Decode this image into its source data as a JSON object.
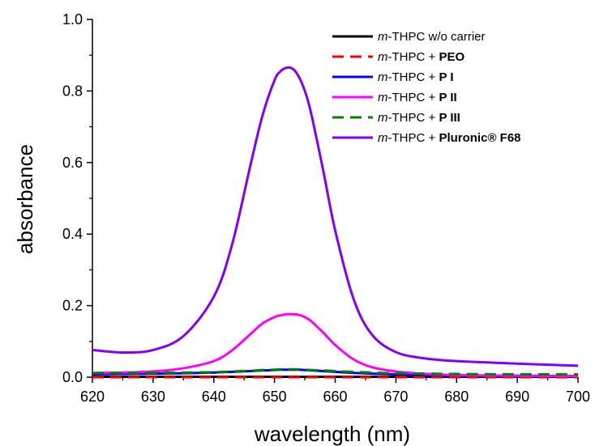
{
  "chart_data": {
    "type": "line",
    "xlabel": "wavelength (nm)",
    "ylabel": "absorbance",
    "xlim": [
      620,
      700
    ],
    "ylim": [
      0.0,
      1.0
    ],
    "x_ticks": [
      "620",
      "630",
      "640",
      "650",
      "660",
      "670",
      "680",
      "690",
      "700"
    ],
    "y_ticks": [
      "0.0",
      "0.2",
      "0.4",
      "0.6",
      "0.8",
      "1.0"
    ],
    "x": [
      620,
      625,
      630,
      635,
      640,
      643,
      646,
      648,
      650,
      651,
      652,
      653,
      654,
      655,
      656,
      658,
      660,
      663,
      666,
      670,
      675,
      680,
      690,
      700
    ],
    "series": [
      {
        "name": "m-THPC w/o carrier",
        "name_parts": [
          {
            "t": "m",
            "s": "ital"
          },
          {
            "t": "-THPC w/o carrier",
            "s": ""
          }
        ],
        "color": "#000000",
        "dash": false,
        "values": [
          0.001,
          0.001,
          0.001,
          0.001,
          0.001,
          0.001,
          0.001,
          0.001,
          0.001,
          0.001,
          0.001,
          0.001,
          0.001,
          0.001,
          0.001,
          0.001,
          0.001,
          0.001,
          0.001,
          0.001,
          0.001,
          0.001,
          0.001,
          0.001
        ]
      },
      {
        "name": "m-THPC + PEO",
        "name_parts": [
          {
            "t": "m",
            "s": "ital"
          },
          {
            "t": "-THPC + ",
            "s": ""
          },
          {
            "t": "PEO",
            "s": "bold"
          }
        ],
        "color": "#ff0000",
        "dash": true,
        "values": [
          0.0,
          0.0,
          0.0,
          0.0,
          0.0,
          0.0,
          0.0,
          0.0,
          0.0,
          0.0,
          0.0,
          0.0,
          0.0,
          0.0,
          0.0,
          0.0,
          0.0,
          0.0,
          0.0,
          0.0,
          0.0,
          0.0,
          0.0,
          0.0
        ]
      },
      {
        "name": "m-THPC + P I",
        "name_parts": [
          {
            "t": "m",
            "s": "ital"
          },
          {
            "t": "-THPC + ",
            "s": ""
          },
          {
            "t": "P I",
            "s": "bold"
          }
        ],
        "color": "#0000ff",
        "dash": false,
        "values": [
          0.008,
          0.009,
          0.01,
          0.011,
          0.013,
          0.015,
          0.017,
          0.019,
          0.02,
          0.021,
          0.021,
          0.021,
          0.021,
          0.02,
          0.019,
          0.017,
          0.015,
          0.012,
          0.01,
          0.008,
          0.006,
          0.005,
          0.004,
          0.003
        ]
      },
      {
        "name": "m-THPC + P II",
        "name_parts": [
          {
            "t": "m",
            "s": "ital"
          },
          {
            "t": "-THPC + ",
            "s": ""
          },
          {
            "t": "P II",
            "s": "bold"
          }
        ],
        "color": "#ff00ff",
        "dash": false,
        "values": [
          0.012,
          0.013,
          0.016,
          0.025,
          0.045,
          0.075,
          0.12,
          0.15,
          0.168,
          0.173,
          0.176,
          0.176,
          0.174,
          0.168,
          0.157,
          0.125,
          0.09,
          0.05,
          0.028,
          0.016,
          0.009,
          0.006,
          0.004,
          0.003
        ]
      },
      {
        "name": "m-THPC + P III",
        "name_parts": [
          {
            "t": "m",
            "s": "ital"
          },
          {
            "t": "-THPC + ",
            "s": ""
          },
          {
            "t": "P III",
            "s": "bold"
          }
        ],
        "color": "#008000",
        "dash": true,
        "values": [
          0.012,
          0.012,
          0.012,
          0.013,
          0.014,
          0.016,
          0.018,
          0.02,
          0.021,
          0.022,
          0.022,
          0.022,
          0.022,
          0.021,
          0.02,
          0.019,
          0.017,
          0.015,
          0.013,
          0.011,
          0.01,
          0.009,
          0.008,
          0.008
        ]
      },
      {
        "name": "m-THPC + Pluronic® F68",
        "name_parts": [
          {
            "t": "m",
            "s": "ital"
          },
          {
            "t": "-THPC + ",
            "s": ""
          },
          {
            "t": "Pluronic® F68",
            "s": "bold"
          }
        ],
        "color": "#8000ff",
        "dash": false,
        "values": [
          0.076,
          0.069,
          0.076,
          0.115,
          0.225,
          0.37,
          0.59,
          0.73,
          0.83,
          0.855,
          0.865,
          0.862,
          0.84,
          0.8,
          0.74,
          0.58,
          0.41,
          0.22,
          0.12,
          0.07,
          0.052,
          0.045,
          0.038,
          0.032
        ]
      }
    ],
    "legend_position": "top-right",
    "grid": false
  }
}
